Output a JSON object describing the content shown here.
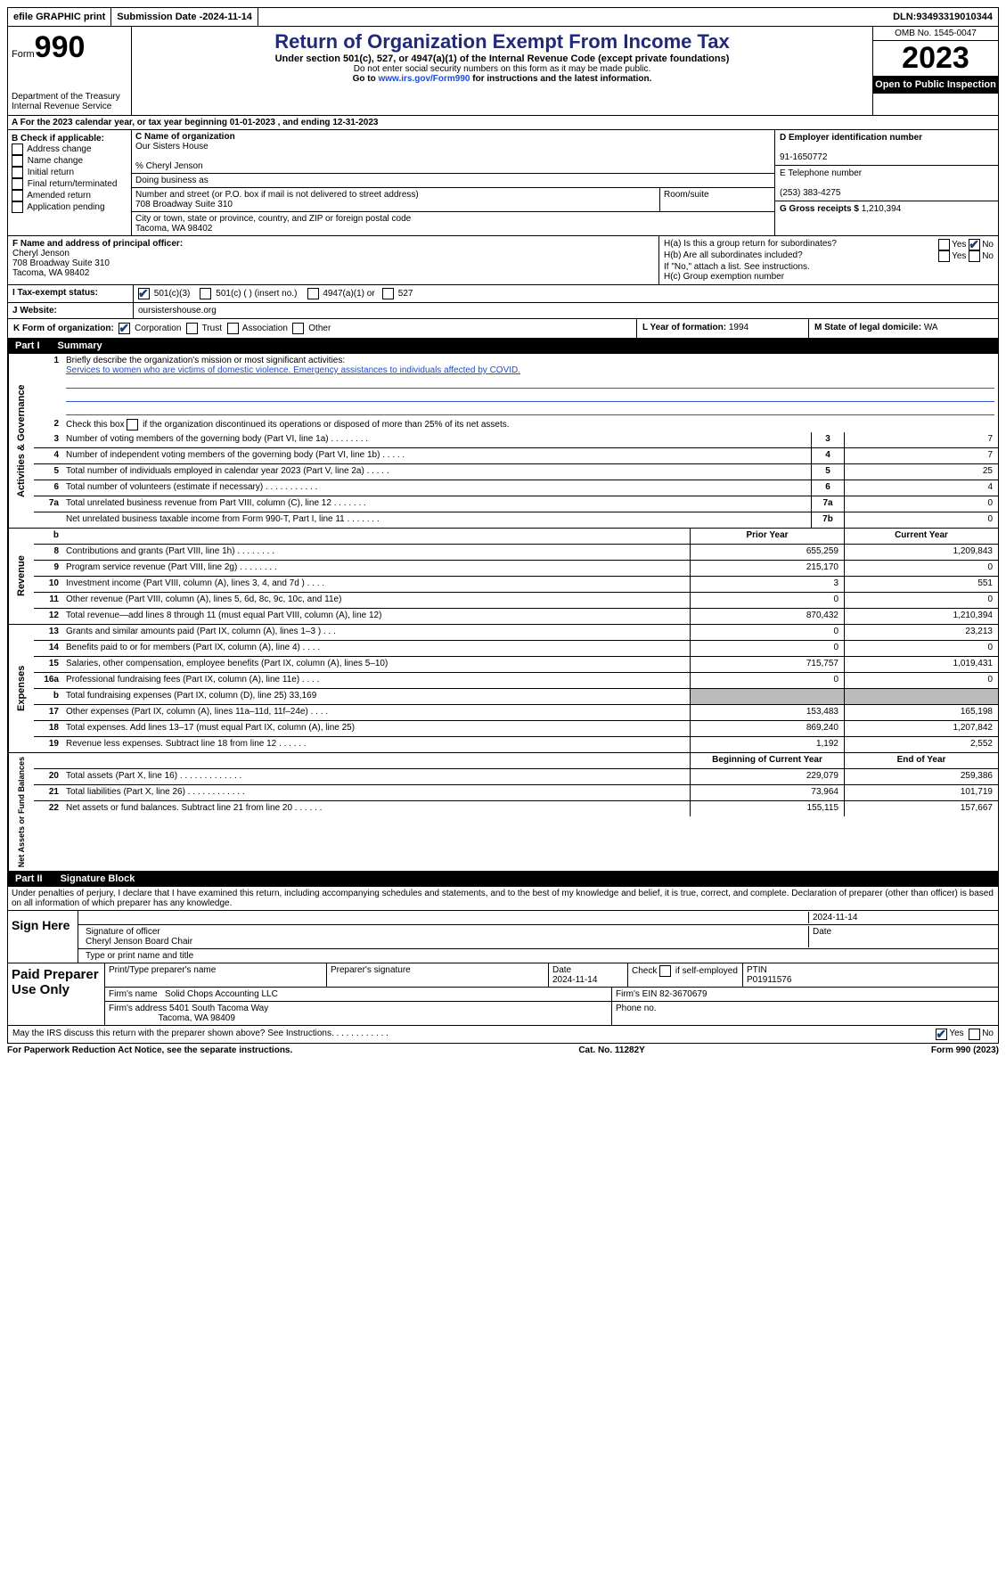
{
  "topbar": {
    "efile": "efile GRAPHIC print",
    "submission_label": "Submission Date - ",
    "submission_date": "2024-11-14",
    "dln_label": "DLN: ",
    "dln": "93493319010344"
  },
  "header": {
    "form_word": "Form",
    "form_num": "990",
    "dept": "Department of the Treasury\nInternal Revenue Service",
    "title": "Return of Organization Exempt From Income Tax",
    "sub1": "Under section 501(c), 527, or 4947(a)(1) of the Internal Revenue Code (except private foundations)",
    "sub2": "Do not enter social security numbers on this form as it may be made public.",
    "sub3_pre": "Go to ",
    "sub3_link": "www.irs.gov/Form990",
    "sub3_post": " for instructions and the latest information.",
    "omb": "OMB No. 1545-0047",
    "year": "2023",
    "open": "Open to Public Inspection"
  },
  "row_a": "A  For the 2023 calendar year, or tax year beginning 01-01-2023    , and ending 12-31-2023",
  "col_b": {
    "label": "B Check if applicable:",
    "opts": [
      "Address change",
      "Name change",
      "Initial return",
      "Final return/terminated",
      "Amended return",
      "Application pending"
    ]
  },
  "col_c": {
    "name_label": "C Name of organization",
    "name": "Our Sisters House",
    "care_of": "% Cheryl Jenson",
    "dba_label": "Doing business as",
    "street_label": "Number and street (or P.O. box if mail is not delivered to street address)",
    "street": "708 Broadway Suite 310",
    "room_label": "Room/suite",
    "city_label": "City or town, state or province, country, and ZIP or foreign postal code",
    "city": "Tacoma, WA  98402"
  },
  "col_d": {
    "label": "D Employer identification number",
    "val": "91-1650772"
  },
  "col_e": {
    "label": "E Telephone number",
    "val": "(253) 383-4275"
  },
  "col_g": {
    "label": "G Gross receipts $ ",
    "val": "1,210,394"
  },
  "col_f": {
    "label": "F  Name and address of principal officer:",
    "name": "Cheryl Jenson",
    "addr1": "708 Broadway Suite 310",
    "addr2": "Tacoma, WA  98402"
  },
  "col_h": {
    "a": "H(a)  Is this a group return for subordinates?",
    "b": "H(b)  Are all subordinates included?",
    "note": "If \"No,\" attach a list. See instructions.",
    "c": "H(c)  Group exemption number"
  },
  "row_i": {
    "label": "I    Tax-exempt status:",
    "o1": "501(c)(3)",
    "o2": "501(c) (  ) (insert no.)",
    "o3": "4947(a)(1) or",
    "o4": "527"
  },
  "row_j": {
    "label": "J    Website:",
    "val": "oursistershouse.org"
  },
  "row_k": {
    "label": "K Form of organization:",
    "opts": [
      "Corporation",
      "Trust",
      "Association",
      "Other"
    ],
    "l": "L Year of formation: ",
    "l_val": "1994",
    "m": "M State of legal domicile: ",
    "m_val": "WA"
  },
  "part1": {
    "pn": "Part I",
    "title": "Summary"
  },
  "sec_gov": {
    "side": "Activities & Governance",
    "l1_label": "Briefly describe the organization's mission or most significant activities:",
    "l1_text": "Services to women who are victims of domestic violence. Emergency assistances to individuals affected by COVID.",
    "l2": "Check this box      if the organization discontinued its operations or disposed of more than 25% of its net assets.",
    "rows": [
      {
        "n": "3",
        "d": "Number of voting members of the governing body (Part VI, line 1a)   .   .   .   .   .   .   .   .",
        "b": "3",
        "v": "7"
      },
      {
        "n": "4",
        "d": "Number of independent voting members of the governing body (Part VI, line 1b)   .   .   .   .   .",
        "b": "4",
        "v": "7"
      },
      {
        "n": "5",
        "d": "Total number of individuals employed in calendar year 2023 (Part V, line 2a)   .   .   .   .   .",
        "b": "5",
        "v": "25"
      },
      {
        "n": "6",
        "d": "Total number of volunteers (estimate if necessary)   .   .   .   .   .   .   .   .   .   .   .",
        "b": "6",
        "v": "4"
      },
      {
        "n": "7a",
        "d": "Total unrelated business revenue from Part VIII, column (C), line 12   .   .   .   .   .   .   .",
        "b": "7a",
        "v": "0"
      },
      {
        "n": "",
        "d": "Net unrelated business taxable income from Form 990-T, Part I, line 11   .   .   .   .   .   .   .",
        "b": "7b",
        "v": "0"
      }
    ]
  },
  "sec_rev": {
    "side": "Revenue",
    "header": {
      "py": "Prior Year",
      "cy": "Current Year",
      "b": "b"
    },
    "rows": [
      {
        "n": "8",
        "d": "Contributions and grants (Part VIII, line 1h)   .   .   .   .   .   .   .   .",
        "py": "655,259",
        "cy": "1,209,843"
      },
      {
        "n": "9",
        "d": "Program service revenue (Part VIII, line 2g)   .   .   .   .   .   .   .   .",
        "py": "215,170",
        "cy": "0"
      },
      {
        "n": "10",
        "d": "Investment income (Part VIII, column (A), lines 3, 4, and 7d )   .   .   .   .",
        "py": "3",
        "cy": "551"
      },
      {
        "n": "11",
        "d": "Other revenue (Part VIII, column (A), lines 5, 6d, 8c, 9c, 10c, and 11e)",
        "py": "0",
        "cy": "0"
      },
      {
        "n": "12",
        "d": "Total revenue—add lines 8 through 11 (must equal Part VIII, column (A), line 12)",
        "py": "870,432",
        "cy": "1,210,394"
      }
    ]
  },
  "sec_exp": {
    "side": "Expenses",
    "rows": [
      {
        "n": "13",
        "d": "Grants and similar amounts paid (Part IX, column (A), lines 1–3 )   .   .   .",
        "py": "0",
        "cy": "23,213"
      },
      {
        "n": "14",
        "d": "Benefits paid to or for members (Part IX, column (A), line 4)   .   .   .   .",
        "py": "0",
        "cy": "0"
      },
      {
        "n": "15",
        "d": "Salaries, other compensation, employee benefits (Part IX, column (A), lines 5–10)",
        "py": "715,757",
        "cy": "1,019,431"
      },
      {
        "n": "16a",
        "d": "Professional fundraising fees (Part IX, column (A), line 11e)   .   .   .   .",
        "py": "0",
        "cy": "0"
      },
      {
        "n": "b",
        "d": "Total fundraising expenses (Part IX, column (D), line 25) 33,169",
        "grey": true
      },
      {
        "n": "17",
        "d": "Other expenses (Part IX, column (A), lines 11a–11d, 11f–24e)   .   .   .   .",
        "py": "153,483",
        "cy": "165,198"
      },
      {
        "n": "18",
        "d": "Total expenses. Add lines 13–17 (must equal Part IX, column (A), line 25)",
        "py": "869,240",
        "cy": "1,207,842"
      },
      {
        "n": "19",
        "d": "Revenue less expenses. Subtract line 18 from line 12   .   .   .   .   .   .",
        "py": "1,192",
        "cy": "2,552"
      }
    ]
  },
  "sec_net": {
    "side": "Net Assets or Fund Balances",
    "header": {
      "py": "Beginning of Current Year",
      "cy": "End of Year"
    },
    "rows": [
      {
        "n": "20",
        "d": "Total assets (Part X, line 16)   .   .   .   .   .   .   .   .   .   .   .   .   .",
        "py": "229,079",
        "cy": "259,386"
      },
      {
        "n": "21",
        "d": "Total liabilities (Part X, line 26)   .   .   .   .   .   .   .   .   .   .   .   .",
        "py": "73,964",
        "cy": "101,719"
      },
      {
        "n": "22",
        "d": "Net assets or fund balances. Subtract line 21 from line 20   .   .   .   .   .   .",
        "py": "155,115",
        "cy": "157,667"
      }
    ]
  },
  "part2": {
    "pn": "Part II",
    "title": "Signature Block",
    "penalties": "Under penalties of perjury, I declare that I have examined this return, including accompanying schedules and statements, and to the best of my knowledge and belief, it is true, correct, and complete. Declaration of preparer (other than officer) is based on all information of which preparer has any knowledge."
  },
  "sign": {
    "label": "Sign Here",
    "sig_label": "Signature of officer",
    "date_label": "Date",
    "date": "2024-11-14",
    "name": "Cheryl Jenson  Board Chair",
    "name_label": "Type or print name and title"
  },
  "prep": {
    "label": "Paid Preparer Use Only",
    "h1": "Print/Type preparer's name",
    "h2": "Preparer's signature",
    "h3": "Date",
    "h3v": "2024-11-14",
    "h4": "Check        if self-employed",
    "h5": "PTIN",
    "h5v": "P01911576",
    "firm_label": "Firm's name",
    "firm": "Solid Chops Accounting LLC",
    "ein_label": "Firm's EIN",
    "ein": "82-3670679",
    "addr_label": "Firm's address",
    "addr1": "5401 South Tacoma Way",
    "addr2": "Tacoma, WA  98409",
    "phone_label": "Phone no."
  },
  "discuss": "May the IRS discuss this return with the preparer shown above? See Instructions.   .   .   .   .   .   .   .   .   .   .   .",
  "footer": {
    "l": "For Paperwork Reduction Act Notice, see the separate instructions.",
    "c": "Cat. No. 11282Y",
    "r": "Form 990 (2023)"
  },
  "yn": {
    "yes": "Yes",
    "no": "No"
  }
}
